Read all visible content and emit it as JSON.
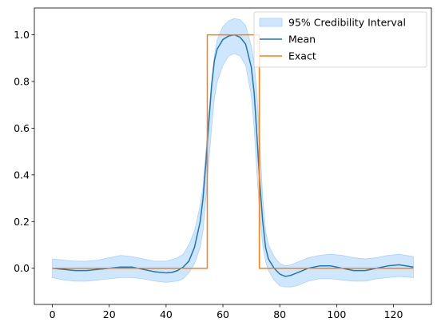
{
  "chart_data": {
    "type": "line",
    "title": "",
    "xlabel": "",
    "ylabel": "",
    "xlim": [
      -6.35,
      133.35
    ],
    "ylim": [
      -0.155,
      1.115
    ],
    "xticks": [
      0,
      20,
      40,
      60,
      80,
      100,
      120
    ],
    "yticks": [
      0.0,
      0.2,
      0.4,
      0.6,
      0.8,
      1.0
    ],
    "xtick_labels": [
      "0",
      "20",
      "40",
      "60",
      "80",
      "100",
      "120"
    ],
    "ytick_labels": [
      "0.0",
      "0.2",
      "0.4",
      "0.6",
      "0.8",
      "1.0"
    ],
    "grid": false,
    "legend": {
      "placement": "top-right",
      "entries": [
        "95% Credibility Interval",
        "Mean",
        "Exact"
      ]
    },
    "band": {
      "name": "95% Credibility Interval",
      "color": "#cfe6ff",
      "edge_color": "#a9d2ff",
      "x": [
        0,
        4,
        8,
        12,
        16,
        20,
        24,
        28,
        32,
        36,
        40,
        44,
        46,
        48,
        50,
        52,
        53,
        54,
        55,
        56,
        57,
        58,
        60,
        62,
        64,
        66,
        68,
        70,
        71,
        72,
        73,
        74,
        75,
        76,
        78,
        80,
        82,
        84,
        86,
        88,
        90,
        94,
        98,
        102,
        106,
        110,
        114,
        118,
        122,
        127
      ],
      "lower": [
        -0.04,
        -0.05,
        -0.055,
        -0.055,
        -0.05,
        -0.045,
        -0.04,
        -0.04,
        -0.045,
        -0.055,
        -0.06,
        -0.055,
        -0.045,
        -0.02,
        0.02,
        0.09,
        0.16,
        0.3,
        0.45,
        0.6,
        0.73,
        0.8,
        0.87,
        0.91,
        0.92,
        0.91,
        0.87,
        0.74,
        0.6,
        0.4,
        0.22,
        0.1,
        0.03,
        -0.01,
        -0.05,
        -0.075,
        -0.08,
        -0.08,
        -0.075,
        -0.065,
        -0.055,
        -0.045,
        -0.045,
        -0.05,
        -0.055,
        -0.055,
        -0.045,
        -0.04,
        -0.035,
        -0.04
      ],
      "upper": [
        0.04,
        0.035,
        0.03,
        0.03,
        0.035,
        0.045,
        0.055,
        0.05,
        0.04,
        0.03,
        0.03,
        0.045,
        0.06,
        0.1,
        0.16,
        0.27,
        0.35,
        0.5,
        0.66,
        0.8,
        0.91,
        0.98,
        1.035,
        1.06,
        1.07,
        1.065,
        1.04,
        0.95,
        0.88,
        0.74,
        0.53,
        0.3,
        0.16,
        0.1,
        0.05,
        0.02,
        0.01,
        0.015,
        0.025,
        0.035,
        0.045,
        0.055,
        0.06,
        0.055,
        0.045,
        0.04,
        0.045,
        0.055,
        0.06,
        0.05
      ]
    },
    "series": [
      {
        "name": "Mean",
        "color": "#1f77b4",
        "x": [
          0,
          4,
          8,
          12,
          16,
          20,
          24,
          28,
          32,
          36,
          40,
          42,
          44,
          46,
          48,
          50,
          52,
          53,
          54,
          55,
          56,
          57,
          58,
          60,
          62,
          64,
          66,
          68,
          70,
          71,
          72,
          73,
          74,
          75,
          76,
          78,
          80,
          82,
          84,
          86,
          90,
          94,
          98,
          102,
          106,
          110,
          114,
          118,
          122,
          127
        ],
        "values": [
          0.0,
          -0.005,
          -0.01,
          -0.01,
          -0.005,
          0.0,
          0.005,
          0.005,
          -0.005,
          -0.015,
          -0.02,
          -0.018,
          -0.01,
          0.005,
          0.03,
          0.09,
          0.2,
          0.3,
          0.45,
          0.62,
          0.78,
          0.89,
          0.94,
          0.98,
          0.995,
          1.0,
          0.99,
          0.96,
          0.86,
          0.75,
          0.56,
          0.36,
          0.2,
          0.09,
          0.04,
          0.0,
          -0.025,
          -0.035,
          -0.03,
          -0.02,
          0.0,
          0.01,
          0.01,
          0.0,
          -0.01,
          -0.01,
          0.0,
          0.01,
          0.015,
          0.005
        ]
      },
      {
        "name": "Exact",
        "color": "#ff7f0e",
        "x": [
          0,
          54.5,
          54.5,
          72.8,
          72.8,
          127
        ],
        "values": [
          0,
          0,
          1,
          1,
          0,
          0
        ]
      }
    ]
  }
}
